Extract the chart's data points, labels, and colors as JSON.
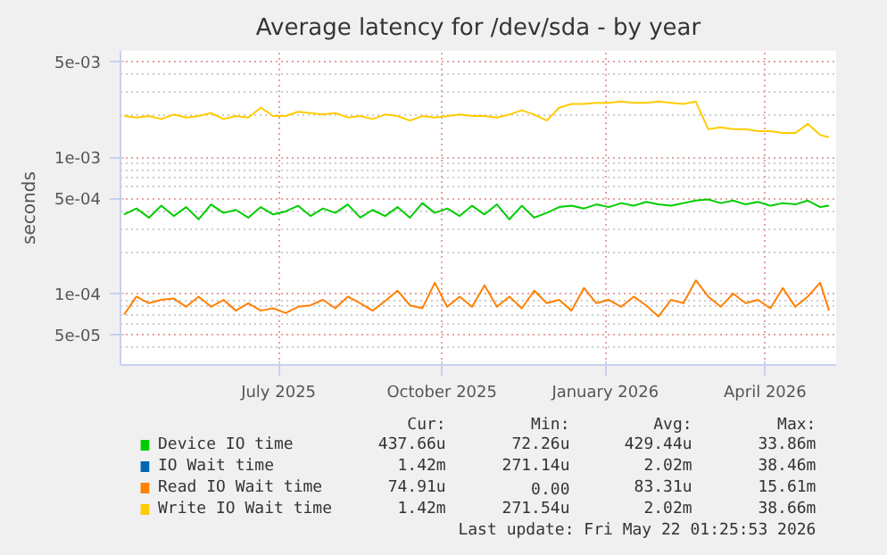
{
  "chart_data": {
    "type": "line",
    "title": "Average latency for /dev/sda - by year",
    "ylabel": "seconds",
    "x": [
      "2025-04-05",
      "2025-04-12",
      "2025-04-19",
      "2025-04-26",
      "2025-05-03",
      "2025-05-10",
      "2025-05-17",
      "2025-05-24",
      "2025-05-31",
      "2025-06-07",
      "2025-06-14",
      "2025-06-21",
      "2025-06-28",
      "2025-07-05",
      "2025-07-12",
      "2025-07-19",
      "2025-07-26",
      "2025-08-02",
      "2025-08-09",
      "2025-08-16",
      "2025-08-23",
      "2025-08-30",
      "2025-09-06",
      "2025-09-13",
      "2025-09-20",
      "2025-09-27",
      "2025-10-04",
      "2025-10-11",
      "2025-10-18",
      "2025-10-25",
      "2025-11-01",
      "2025-11-08",
      "2025-11-15",
      "2025-11-22",
      "2025-11-29",
      "2025-12-06",
      "2025-12-13",
      "2025-12-20",
      "2025-12-27",
      "2026-01-03",
      "2026-01-10",
      "2026-01-17",
      "2026-01-24",
      "2026-01-31",
      "2026-02-07",
      "2026-02-14",
      "2026-02-21",
      "2026-02-28",
      "2026-03-07",
      "2026-03-14",
      "2026-03-21",
      "2026-03-28",
      "2026-04-04",
      "2026-04-11",
      "2026-04-18",
      "2026-04-25",
      "2026-05-02",
      "2026-05-07"
    ],
    "series": [
      {
        "name": "Device IO time",
        "color": "#00cc00",
        "values": [
          0.00038,
          0.00042,
          0.00036,
          0.00044,
          0.00037,
          0.00043,
          0.00035,
          0.00045,
          0.00039,
          0.00041,
          0.00036,
          0.00043,
          0.00038,
          0.0004,
          0.00044,
          0.00037,
          0.00042,
          0.00039,
          0.00045,
          0.00036,
          0.00041,
          0.00037,
          0.00043,
          0.00036,
          0.00046,
          0.00039,
          0.00042,
          0.00037,
          0.00044,
          0.00038,
          0.00045,
          0.00035,
          0.00044,
          0.00036,
          0.00039,
          0.00043,
          0.00044,
          0.00042,
          0.00045,
          0.00043,
          0.00046,
          0.00044,
          0.00047,
          0.00045,
          0.00044,
          0.00046,
          0.00048,
          0.00049,
          0.00046,
          0.00048,
          0.00045,
          0.00047,
          0.00044,
          0.00046,
          0.00045,
          0.00048,
          0.00043,
          0.00044
        ]
      },
      {
        "name": "IO Wait time",
        "color": "#0066b3",
        "values": [
          null,
          null,
          null,
          null,
          null,
          null,
          null,
          null,
          null,
          null,
          null,
          null,
          null,
          null,
          null,
          null,
          null,
          null,
          null,
          null,
          null,
          null,
          null,
          null,
          null,
          null,
          null,
          null,
          null,
          null,
          null,
          null,
          null,
          null,
          null,
          null,
          null,
          null,
          null,
          null,
          null,
          null,
          null,
          null,
          null,
          null,
          null,
          null,
          null,
          null,
          null,
          null,
          null,
          null,
          null,
          null,
          null,
          null
        ]
      },
      {
        "name": "Read IO Wait time",
        "color": "#ff8000",
        "values": [
          7e-05,
          9.5e-05,
          8.5e-05,
          9e-05,
          9.2e-05,
          8e-05,
          9.5e-05,
          8e-05,
          9e-05,
          7.5e-05,
          8.5e-05,
          7.5e-05,
          7.8e-05,
          7.2e-05,
          8e-05,
          8.2e-05,
          9e-05,
          7.8e-05,
          9.5e-05,
          8.5e-05,
          7.5e-05,
          8.8e-05,
          0.000105,
          8.2e-05,
          7.8e-05,
          0.00012,
          8e-05,
          9.5e-05,
          8e-05,
          0.000115,
          8e-05,
          9.5e-05,
          7.8e-05,
          0.000105,
          8.5e-05,
          9e-05,
          7.5e-05,
          0.00011,
          8.5e-05,
          9e-05,
          8e-05,
          9.5e-05,
          8.2e-05,
          6.8e-05,
          9e-05,
          8.5e-05,
          0.000125,
          9.5e-05,
          8e-05,
          0.0001,
          8.5e-05,
          9e-05,
          7.8e-05,
          0.00011,
          8e-05,
          9.5e-05,
          0.00012,
          7.5e-05
        ]
      },
      {
        "name": "Write IO Wait time",
        "color": "#ffcc00",
        "values": [
          0.002,
          0.00195,
          0.002,
          0.0019,
          0.00205,
          0.00195,
          0.002,
          0.0021,
          0.0019,
          0.002,
          0.00195,
          0.0023,
          0.002,
          0.002,
          0.00215,
          0.0021,
          0.00205,
          0.0021,
          0.00195,
          0.002,
          0.0019,
          0.00205,
          0.002,
          0.00185,
          0.002,
          0.00195,
          0.002,
          0.00205,
          0.002,
          0.002,
          0.00195,
          0.00205,
          0.0022,
          0.00205,
          0.00185,
          0.0023,
          0.00245,
          0.00245,
          0.0025,
          0.0025,
          0.00255,
          0.0025,
          0.0025,
          0.00255,
          0.0025,
          0.00245,
          0.00255,
          0.0016,
          0.00165,
          0.0016,
          0.0016,
          0.00155,
          0.00155,
          0.0015,
          0.0015,
          0.00175,
          0.00145,
          0.0014
        ]
      }
    ],
    "log": "y",
    "ylim": [
      3e-05,
      0.006
    ],
    "yticks": [
      {
        "value": 5e-05,
        "label": "5e-05"
      },
      {
        "value": 0.0001,
        "label": "1e-04"
      },
      {
        "value": 0.0005,
        "label": "5e-04"
      },
      {
        "value": 0.001,
        "label": "1e-03"
      },
      {
        "value": 0.005,
        "label": "5e-03"
      }
    ],
    "xlim": [
      "2025-04-03",
      "2026-05-11"
    ],
    "xticks": [
      {
        "value": "2025-07-01",
        "label": "July 2025"
      },
      {
        "value": "2025-10-01",
        "label": "October 2025"
      },
      {
        "value": "2026-01-01",
        "label": "January 2026"
      },
      {
        "value": "2026-04-01",
        "label": "April 2026"
      }
    ],
    "grid": true,
    "legend": "bottom",
    "marker": "none",
    "line_style": "solid",
    "annotations": [
      "Cur:",
      "Min:",
      "Avg:",
      "Max:",
      "437.66u",
      "72.26u",
      "429.44u",
      "33.86m",
      "1.42m",
      "271.14u",
      "2.02m",
      "38.46m",
      "74.91u",
      "0.00",
      "83.31u",
      "15.61m",
      "1.42m",
      "271.54u",
      "2.02m",
      "38.66m",
      "Last update: Fri May 22 01:25:53 2026"
    ]
  }
}
